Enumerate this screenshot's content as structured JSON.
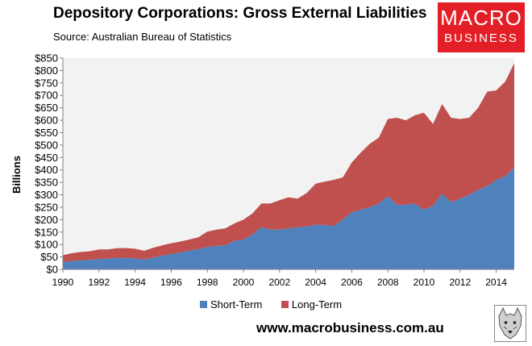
{
  "header": {
    "title": "Depository Corporations: Gross External Liabilities",
    "subtitle": "Source: Australian Bureau of Statistics"
  },
  "logo": {
    "line1": "MACRO",
    "line2": "BUSINESS"
  },
  "website": "www.macrobusiness.com.au",
  "colors": {
    "short_term": "#4f81bd",
    "long_term": "#c0504d",
    "plot_bg": "#f2f2f2",
    "logo_bg": "#e41e26"
  },
  "chart_data": {
    "type": "area",
    "stacked": true,
    "ylabel": "Billions",
    "ylim": [
      0,
      850
    ],
    "yticks": [
      "$0",
      "$50",
      "$100",
      "$150",
      "$200",
      "$250",
      "$300",
      "$350",
      "$400",
      "$450",
      "$500",
      "$550",
      "$600",
      "$650",
      "$700",
      "$750",
      "$800",
      "$850"
    ],
    "xlim": [
      1990,
      2015
    ],
    "xticks": [
      "1990",
      "1992",
      "1994",
      "1996",
      "1998",
      "2000",
      "2002",
      "2004",
      "2006",
      "2008",
      "2010",
      "2012",
      "2014"
    ],
    "legend_position": "bottom",
    "x": [
      1990,
      1990.5,
      1991,
      1991.5,
      1992,
      1992.5,
      1993,
      1993.5,
      1994,
      1994.5,
      1995,
      1995.5,
      1996,
      1996.5,
      1997,
      1997.5,
      1998,
      1998.5,
      1999,
      1999.5,
      2000,
      2000.5,
      2001,
      2001.5,
      2002,
      2002.5,
      2003,
      2003.5,
      2004,
      2004.5,
      2005,
      2005.5,
      2006,
      2006.5,
      2007,
      2007.5,
      2008,
      2008.5,
      2009,
      2009.5,
      2010,
      2010.5,
      2011,
      2011.5,
      2012,
      2012.5,
      2013,
      2013.5,
      2014,
      2014.5,
      2015
    ],
    "series": [
      {
        "name": "Short-Term",
        "values": [
          30,
          33,
          37,
          38,
          42,
          43,
          47,
          46,
          45,
          40,
          47,
          55,
          62,
          68,
          75,
          82,
          90,
          95,
          97,
          115,
          120,
          140,
          170,
          160,
          160,
          165,
          170,
          172,
          180,
          178,
          175,
          200,
          230,
          240,
          250,
          265,
          295,
          260,
          260,
          265,
          240,
          255,
          305,
          270,
          285,
          300,
          320,
          335,
          360,
          375,
          410
        ]
      },
      {
        "name": "Long-Term",
        "values": [
          27,
          32,
          33,
          35,
          38,
          37,
          38,
          40,
          38,
          35,
          40,
          42,
          43,
          44,
          45,
          47,
          62,
          65,
          68,
          70,
          80,
          85,
          95,
          105,
          118,
          125,
          115,
          135,
          165,
          175,
          185,
          170,
          200,
          230,
          255,
          265,
          310,
          350,
          340,
          355,
          390,
          330,
          360,
          340,
          320,
          310,
          330,
          380,
          360,
          380,
          420
        ]
      }
    ]
  }
}
